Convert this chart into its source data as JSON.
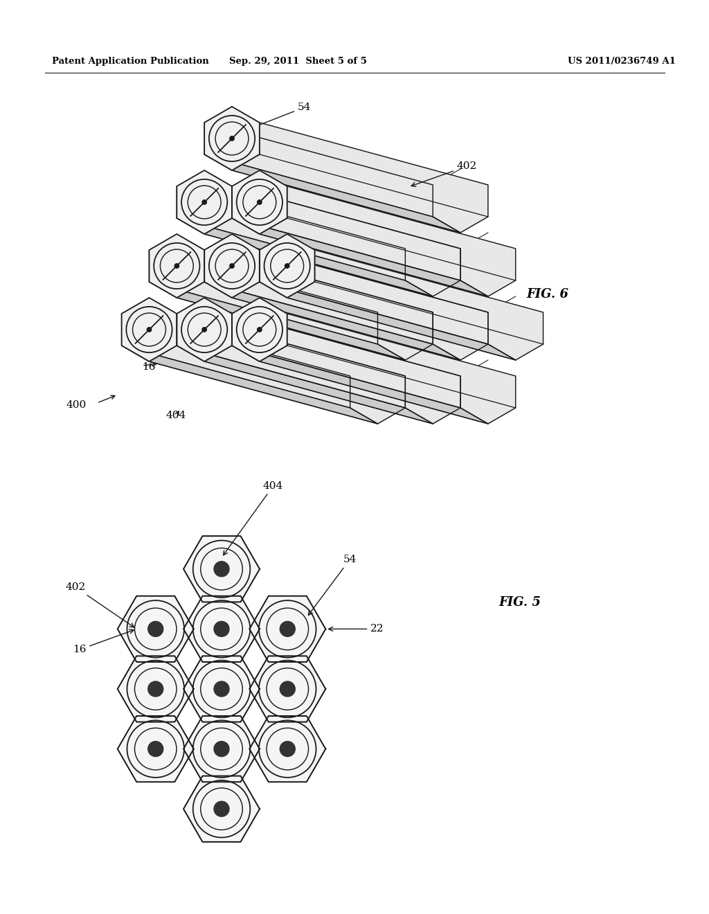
{
  "bg_color": "#ffffff",
  "line_color": "#1a1a1a",
  "line_width": 1.3,
  "header_left": "Patent Application Publication",
  "header_center": "Sep. 29, 2011  Sheet 5 of 5",
  "header_right": "US 2011/0236749 A1",
  "fig6_label": "FIG. 6",
  "fig5_label": "FIG. 5"
}
